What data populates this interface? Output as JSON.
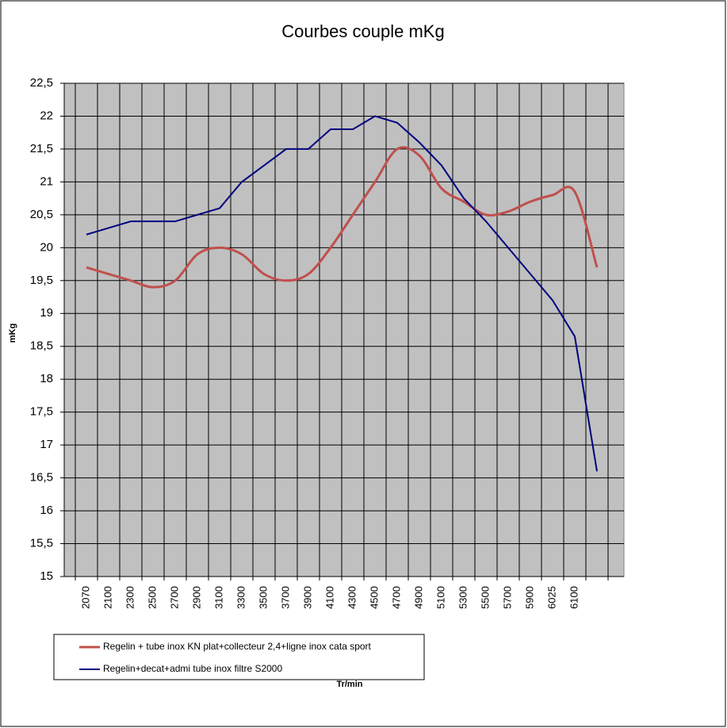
{
  "chart_data": {
    "type": "line",
    "title": "Courbes couple mKg",
    "x_label": "Tr/min",
    "y_label": "mKg",
    "categories": [
      "2070",
      "2100",
      "2300",
      "2500",
      "2700",
      "2900",
      "3100",
      "3300",
      "3500",
      "3700",
      "3900",
      "4100",
      "4300",
      "4500",
      "4700",
      "4900",
      "5100",
      "5300",
      "5500",
      "5700",
      "5900",
      "6025",
      "6100",
      null
    ],
    "series": [
      {
        "name": "Regelin + tube inox KN plat+collecteur 2,4+ligne inox cata sport",
        "color": "#c0504d",
        "smooth": true,
        "values": [
          19.7,
          19.6,
          19.5,
          19.4,
          19.5,
          19.9,
          20.0,
          19.9,
          19.6,
          19.5,
          19.6,
          20.0,
          20.5,
          21.0,
          21.5,
          21.4,
          20.9,
          20.7,
          20.5,
          20.55,
          20.7,
          20.8,
          20.85,
          19.7
        ]
      },
      {
        "name": "Regelin+decat+admi tube inox filtre S2000",
        "color": "#000080",
        "smooth": false,
        "values": [
          20.2,
          20.3,
          20.4,
          20.4,
          20.4,
          20.5,
          20.6,
          21.0,
          21.25,
          21.5,
          21.5,
          21.8,
          21.8,
          22.0,
          21.9,
          21.6,
          21.25,
          20.75,
          20.4,
          20.0,
          19.6,
          19.2,
          18.65,
          16.6
        ]
      }
    ],
    "ylim": [
      15,
      22.5
    ],
    "yticks": [
      15,
      {
        "value": 15.5,
        "label": "15,5"
      },
      16,
      {
        "value": 16.5,
        "label": "16,5"
      },
      17,
      {
        "value": 17.5,
        "label": "17,5"
      },
      18,
      {
        "value": 18.5,
        "label": "18,5"
      },
      19,
      {
        "value": 19.5,
        "label": "19,5"
      },
      20,
      {
        "value": 20.5,
        "label": "20,5"
      },
      21,
      {
        "value": 21.5,
        "label": "21,5"
      },
      22,
      {
        "value": 22.5,
        "label": "22,5"
      }
    ],
    "grid": true,
    "plot_background": "#c0c0c0"
  }
}
